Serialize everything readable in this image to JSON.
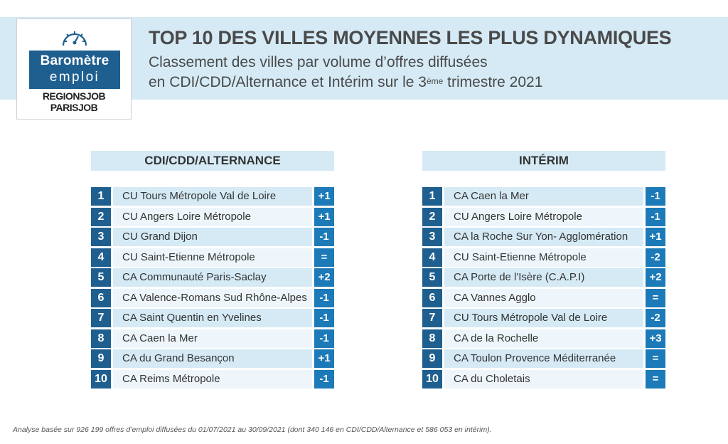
{
  "header": {
    "title": "TOP 10 DES VILLES MOYENNES LES PLUS DYNAMIQUES",
    "subtitle_line1": "Classement des villes par volume d’offres diffusées",
    "subtitle_line2_start": "en CDI/CDD/Alternance et Intérim sur le 3",
    "subtitle_sup": "ème",
    "subtitle_line2_end": " trimestre 2021"
  },
  "logo": {
    "line1": "Baromètre",
    "line2": "emploi",
    "brand1": "REGIONSJOB",
    "brand2": "PARISJOB"
  },
  "colors": {
    "header_band": "#d5eaf5",
    "rank_bg": "#1f5f8f",
    "change_bg": "#1c7ab8",
    "row_alt": "#d5eaf5",
    "row_plain": "#eef6fb"
  },
  "tables": [
    {
      "heading": "CDI/CDD/ALTERNANCE",
      "rows": [
        {
          "rank": "1",
          "city": "CU Tours Métropole Val de Loire",
          "change": "+1"
        },
        {
          "rank": "2",
          "city": "CU Angers Loire Métropole",
          "change": "+1"
        },
        {
          "rank": "3",
          "city": "CU Grand Dijon",
          "change": "-1"
        },
        {
          "rank": "4",
          "city": "CU Saint-Etienne Métropole",
          "change": "="
        },
        {
          "rank": "5",
          "city": "CA Communauté Paris-Saclay",
          "change": "+2"
        },
        {
          "rank": "6",
          "city": "CA Valence-Romans Sud Rhône-Alpes",
          "change": "-1"
        },
        {
          "rank": "7",
          "city": "CA Saint Quentin en Yvelines",
          "change": "-1"
        },
        {
          "rank": "8",
          "city": "CA Caen la Mer",
          "change": "-1"
        },
        {
          "rank": "9",
          "city": "CA du Grand Besançon",
          "change": "+1"
        },
        {
          "rank": "10",
          "city": "CA Reims Métropole",
          "change": "-1"
        }
      ]
    },
    {
      "heading": "INTÉRIM",
      "rows": [
        {
          "rank": "1",
          "city": "CA Caen la Mer",
          "change": "-1"
        },
        {
          "rank": "2",
          "city": "CU Angers Loire Métropole",
          "change": "-1"
        },
        {
          "rank": "3",
          "city": "CA la Roche Sur Yon- Agglomération",
          "change": "+1"
        },
        {
          "rank": "4",
          "city": "CU Saint-Etienne Métropole",
          "change": "-2"
        },
        {
          "rank": "5",
          "city": "CA Porte de l'Isère (C.A.P.I)",
          "change": "+2"
        },
        {
          "rank": "6",
          "city": "CA Vannes Agglo",
          "change": "="
        },
        {
          "rank": "7",
          "city": "CU Tours Métropole Val de Loire",
          "change": "-2"
        },
        {
          "rank": "8",
          "city": "CA de la Rochelle",
          "change": "+3"
        },
        {
          "rank": "9",
          "city": "CA Toulon Provence Méditerranée",
          "change": "="
        },
        {
          "rank": "10",
          "city": "CA du Choletais",
          "change": "="
        }
      ]
    }
  ],
  "footnote": "Analyse basée sur 926 199 offres d’emploi diffusées du 01/07/2021 au 30/09/2021 (dont 340 146 en CDI/CDD/Alternance et 586 053 en intérim)."
}
